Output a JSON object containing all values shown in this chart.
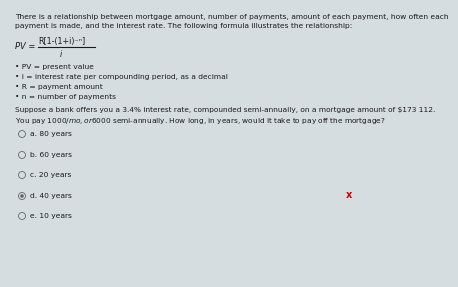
{
  "bg_color": "#d6dde0",
  "text_color": "#1a1a1a",
  "line1": "There is a relationship between mortgage amount, number of payments, amount of each payment, how often each",
  "line2": "payment is made, and the interest rate. The following formula illustrates the relationship:",
  "formula_label": "PV =",
  "formula_numerator": "R[1-(1+i)⁻ⁿ]",
  "formula_denominator": "i",
  "bullet1": "• PV = present value",
  "bullet2": "• i = interest rate per compounding period, as a decimal",
  "bullet3": "• R = payment amount",
  "bullet4": "• n = number of payments",
  "scenario1": "Suppose a bank offers you a 3.4% interest rate, compounded semi-annually, on a mortgage amount of $173 112.",
  "scenario2": "You pay $1000/mo, or $6000 semi-annually. How long, in years, would it take to pay off the mortgage?",
  "opt_a": "a. 80 years",
  "opt_b": "b. 60 years",
  "opt_c": "c. 20 years",
  "opt_d": "d. 40 years",
  "opt_e": "e. 10 years",
  "selected_idx": 3,
  "radio_color": "#666666",
  "x_color": "#cc0000",
  "fs_small": 5.5,
  "fs_formula": 6.5,
  "fs_option": 5.5
}
